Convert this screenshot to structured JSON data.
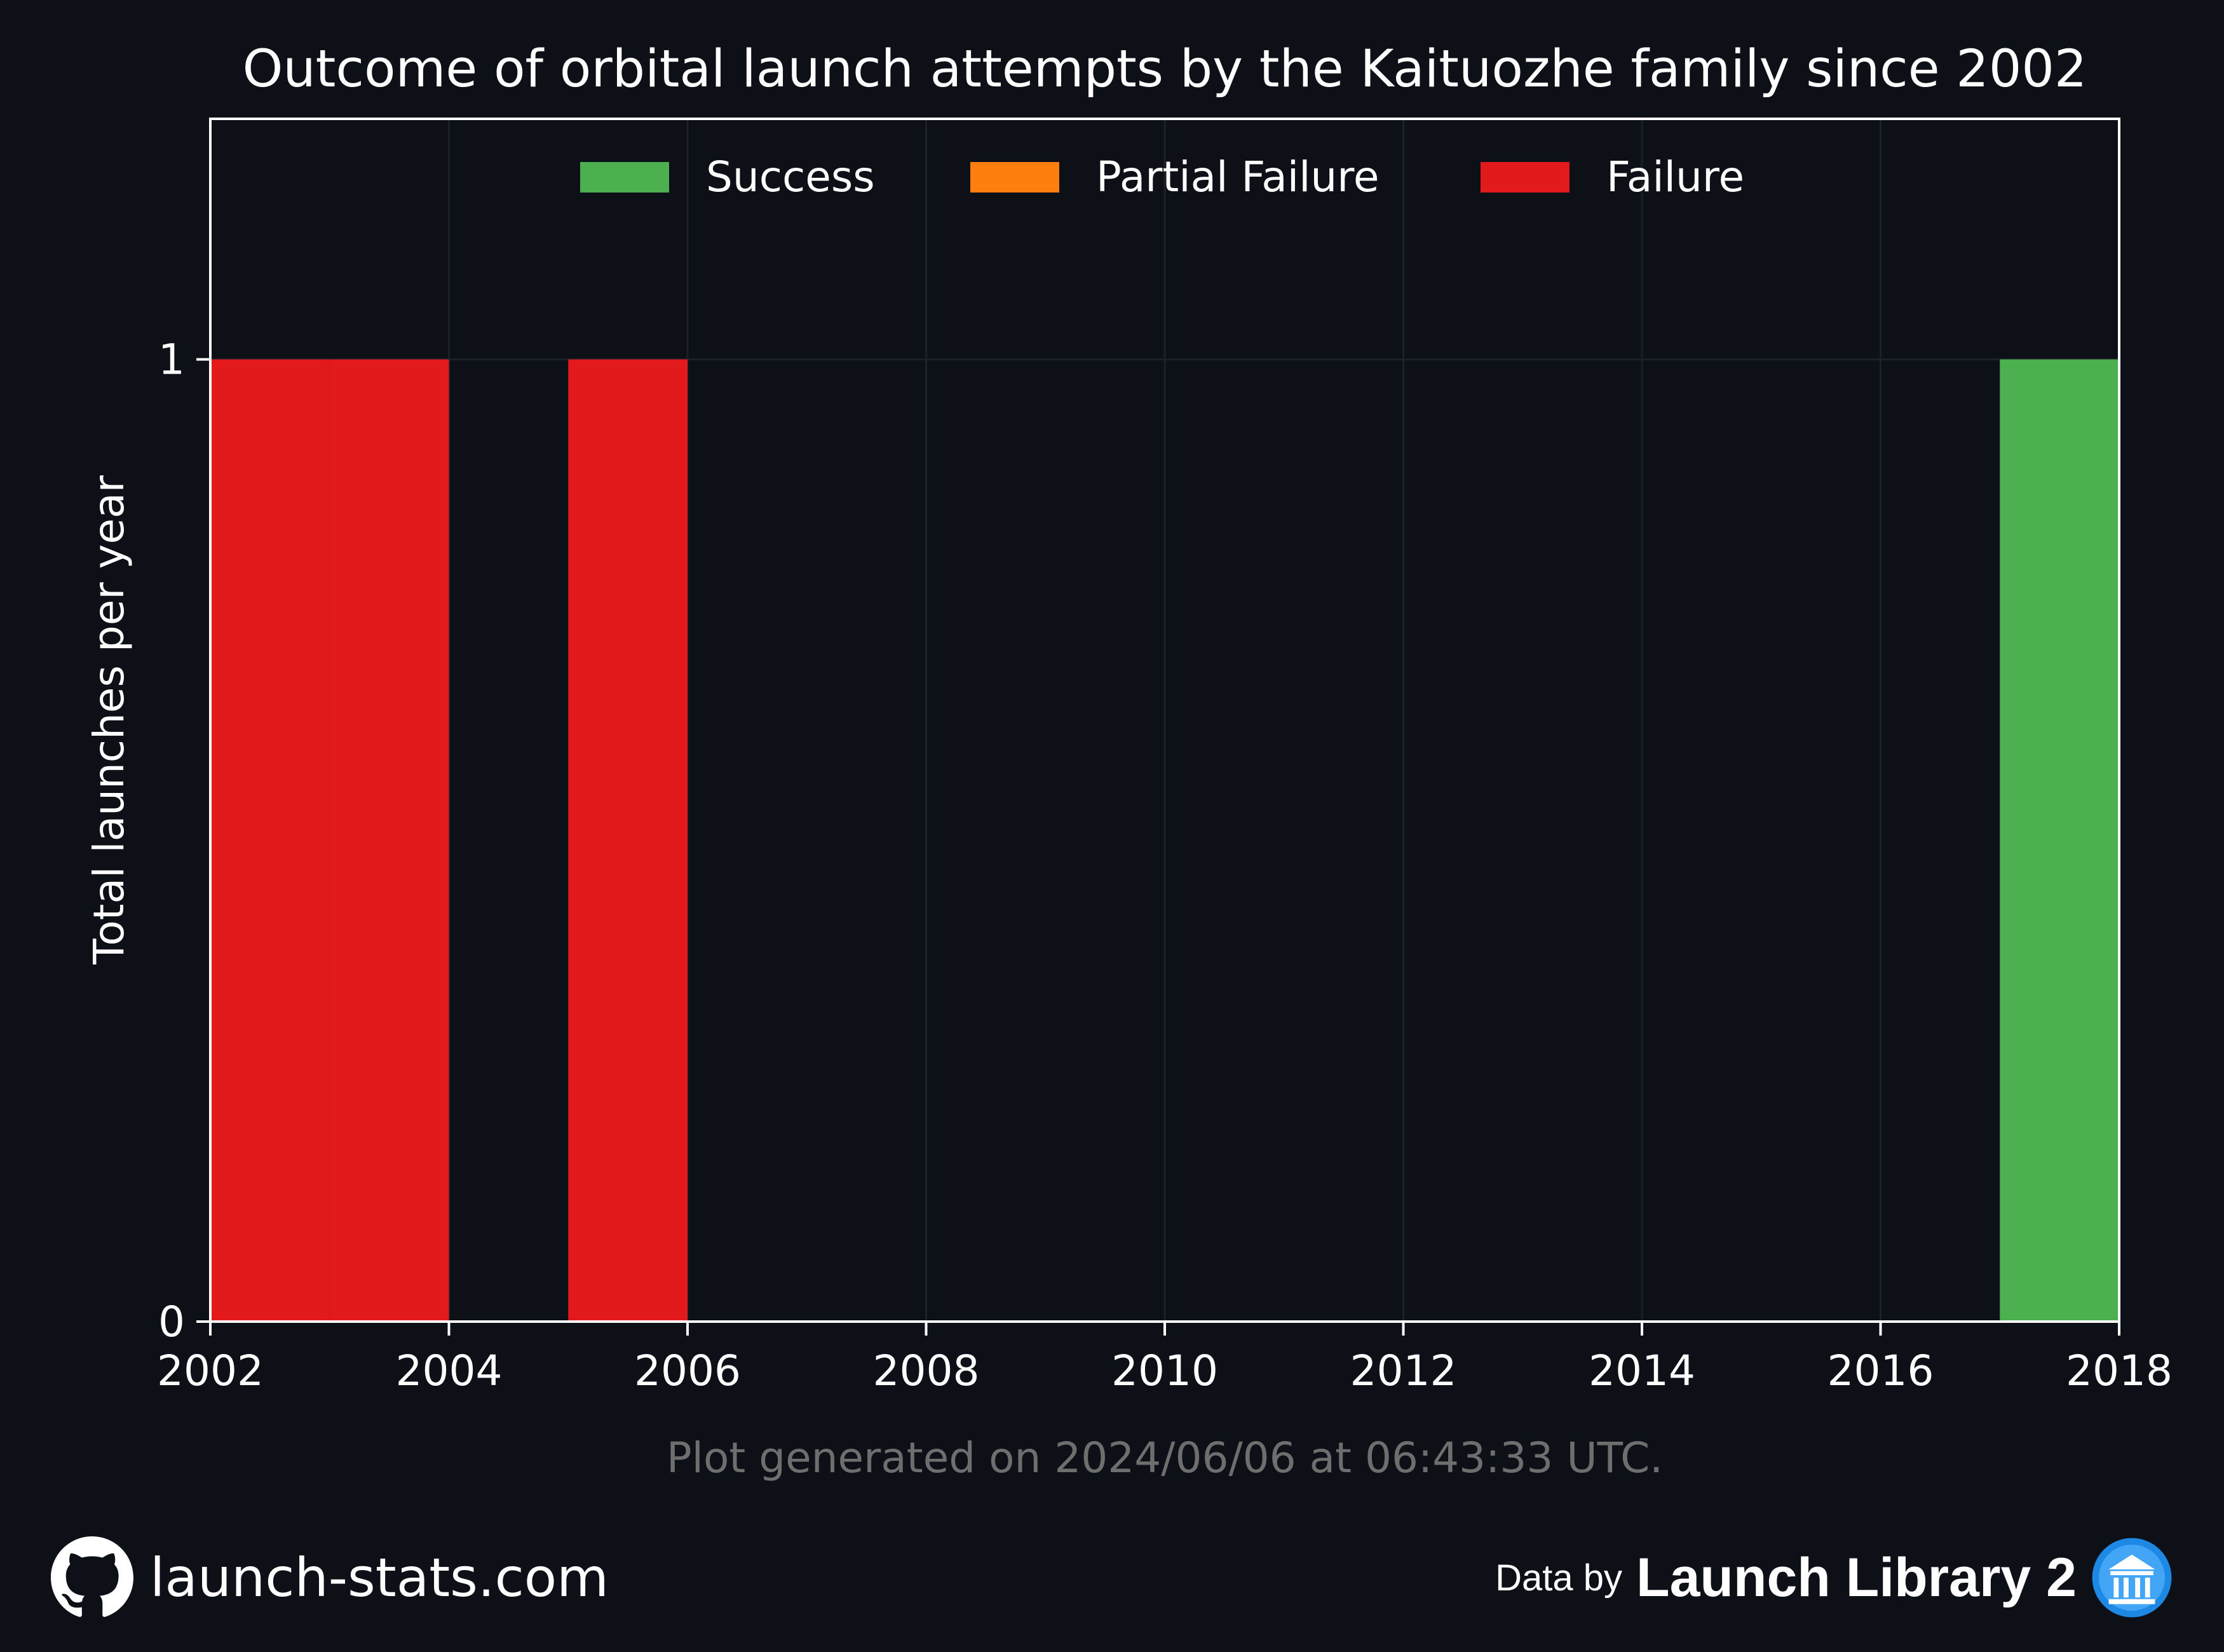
{
  "chart_data": {
    "type": "bar",
    "stacked": true,
    "title": "Outcome of orbital launch attempts by the Kaituozhe family since 2002",
    "xlabel": "",
    "ylabel": "Total launches per year",
    "x_unit": "year",
    "xlim": [
      2002,
      2018
    ],
    "ylim": [
      0,
      1.25
    ],
    "x_ticks": [
      2002,
      2004,
      2006,
      2008,
      2010,
      2012,
      2014,
      2016,
      2018
    ],
    "y_ticks": [
      0,
      1
    ],
    "grid": true,
    "legend_position": "top-center",
    "bins": [
      2002,
      2003,
      2004,
      2005,
      2006,
      2007,
      2008,
      2009,
      2010,
      2011,
      2012,
      2013,
      2014,
      2015,
      2016,
      2017
    ],
    "series": [
      {
        "name": "Success",
        "color": "#4caf50",
        "values": [
          0,
          0,
          0,
          0,
          0,
          0,
          0,
          0,
          0,
          0,
          0,
          0,
          0,
          0,
          0,
          1
        ]
      },
      {
        "name": "Partial Failure",
        "color": "#ff7f0e",
        "values": [
          0,
          0,
          0,
          0,
          0,
          0,
          0,
          0,
          0,
          0,
          0,
          0,
          0,
          0,
          0,
          0
        ]
      },
      {
        "name": "Failure",
        "color": "#e31a1c",
        "values": [
          1,
          1,
          0,
          1,
          0,
          0,
          0,
          0,
          0,
          0,
          0,
          0,
          0,
          0,
          0,
          0
        ]
      }
    ],
    "annotation": "Plot generated on 2024/06/06 at 06:43:33 UTC."
  },
  "footer": {
    "site": "launch-stats.com",
    "site_icon": "github-icon",
    "data_prefix": "Data by",
    "data_source": "Launch Library 2",
    "data_source_icon": "launch-library-icon"
  },
  "colors": {
    "background": "#0d1017",
    "text": "#ffffff",
    "muted_text": "#6e6e6e",
    "grid": "#1c2028"
  }
}
